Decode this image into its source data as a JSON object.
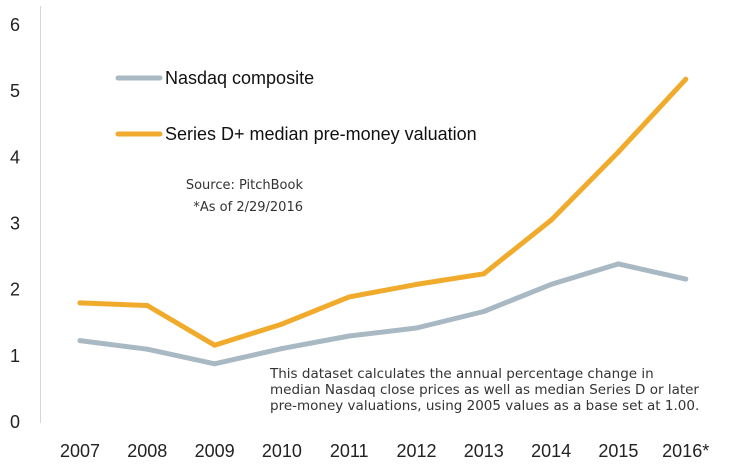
{
  "chart_data": {
    "type": "line",
    "title": "",
    "xlabel": "",
    "ylabel": "",
    "categories": [
      "2007",
      "2008",
      "2009",
      "2010",
      "2011",
      "2012",
      "2013",
      "2014",
      "2015",
      "2016*"
    ],
    "ylim": [
      0,
      6
    ],
    "yticks": [
      "0",
      "1",
      "2",
      "3",
      "4",
      "5",
      "6"
    ],
    "grid": false,
    "legend_position": "top-left",
    "series": [
      {
        "name": "Nasdaq composite",
        "color": "#a9b9c4",
        "values": [
          1.23,
          1.1,
          0.88,
          1.11,
          1.3,
          1.42,
          1.67,
          2.08,
          2.39,
          2.16
        ]
      },
      {
        "name": "Series D+ median pre-money valuation",
        "color": "#f0ab2c",
        "values": [
          1.8,
          1.76,
          1.16,
          1.48,
          1.89,
          2.08,
          2.24,
          3.05,
          4.08,
          5.18
        ]
      }
    ],
    "annotations": {
      "source": "Source: PitchBook",
      "asof": "*As of 2/29/2016",
      "note_lines": [
        "This dataset calculates the annual percentage change in",
        "median Nasdaq close prices as well as median Series D or later",
        "pre-money valuations, using 2005 values as a base set at 1.00."
      ]
    }
  }
}
